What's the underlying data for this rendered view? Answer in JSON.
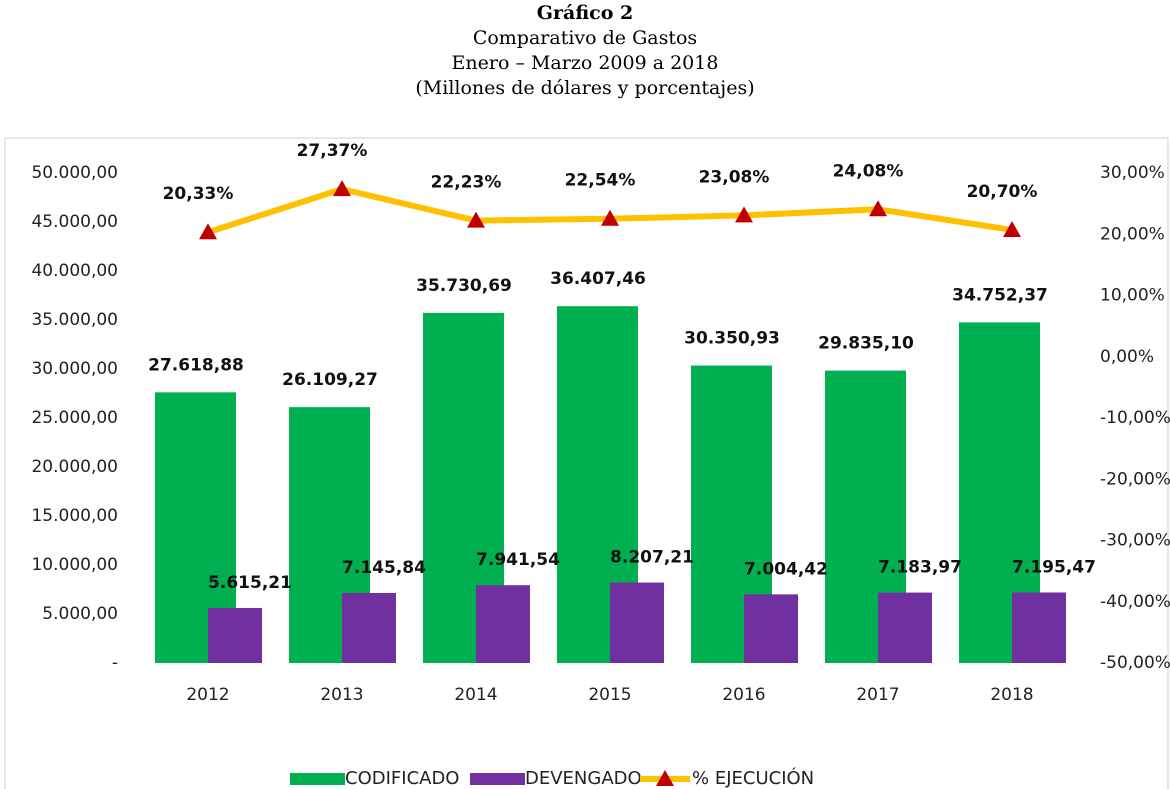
{
  "chart_data": {
    "type": "bar",
    "title": "Gráfico 2",
    "subtitle": [
      "Comparativo de Gastos",
      "Enero – Marzo 2009 a 2018",
      "(Millones de dólares y porcentajes)"
    ],
    "categories": [
      "2012",
      "2013",
      "2014",
      "2015",
      "2016",
      "2017",
      "2018"
    ],
    "series": [
      {
        "name": "CODIFICADO",
        "type": "bar",
        "color": "#00b050",
        "values": [
          27618.88,
          26109.27,
          35730.69,
          36407.46,
          30350.93,
          29835.1,
          34752.37
        ],
        "value_labels": [
          "27.618,88",
          "26.109,27",
          "35.730,69",
          "36.407,46",
          "30.350,93",
          "29.835,10",
          "34.752,37"
        ]
      },
      {
        "name": "DEVENGADO",
        "type": "bar",
        "color": "#7030a0",
        "values": [
          5615.21,
          7145.84,
          7941.54,
          8207.21,
          7004.42,
          7183.97,
          7195.47
        ],
        "value_labels": [
          "5.615,21",
          "7.145,84",
          "7.941,54",
          "8.207,21",
          "7.004,42",
          "7.183,97",
          "7.195,47"
        ]
      },
      {
        "name": "% EJECUCIÓN",
        "type": "line",
        "axis": "y2",
        "color": "#ffc000",
        "marker_color": "#c00000",
        "values": [
          20.33,
          27.37,
          22.23,
          22.54,
          23.08,
          24.08,
          20.7
        ],
        "value_labels": [
          "20,33%",
          "27,37%",
          "22,23%",
          "22,54%",
          "23,08%",
          "24,08%",
          "20,70%"
        ]
      }
    ],
    "ylim": [
      0,
      50000
    ],
    "yticks": [
      {
        "value": 0,
        "label": "-"
      },
      {
        "value": 5000,
        "label": "5.000,00"
      },
      {
        "value": 10000,
        "label": "10.000,00"
      },
      {
        "value": 15000,
        "label": "15.000,00"
      },
      {
        "value": 20000,
        "label": "20.000,00"
      },
      {
        "value": 25000,
        "label": "25.000,00"
      },
      {
        "value": 30000,
        "label": "30.000,00"
      },
      {
        "value": 35000,
        "label": "35.000,00"
      },
      {
        "value": 40000,
        "label": "40.000,00"
      },
      {
        "value": 45000,
        "label": "45.000,00"
      },
      {
        "value": 50000,
        "label": "50.000,00"
      }
    ],
    "y2lim": [
      -50,
      30
    ],
    "y2ticks": [
      {
        "value": -50,
        "label": "-50,00%"
      },
      {
        "value": -40,
        "label": "-40,00%"
      },
      {
        "value": -30,
        "label": "-30,00%"
      },
      {
        "value": -20,
        "label": "-20,00%"
      },
      {
        "value": -10,
        "label": "-10,00%"
      },
      {
        "value": 0,
        "label": "0,00%"
      },
      {
        "value": 10,
        "label": "10,00%"
      },
      {
        "value": 20,
        "label": "20,00%"
      },
      {
        "value": 30,
        "label": "30,00%"
      }
    ],
    "legend": "bottom"
  }
}
